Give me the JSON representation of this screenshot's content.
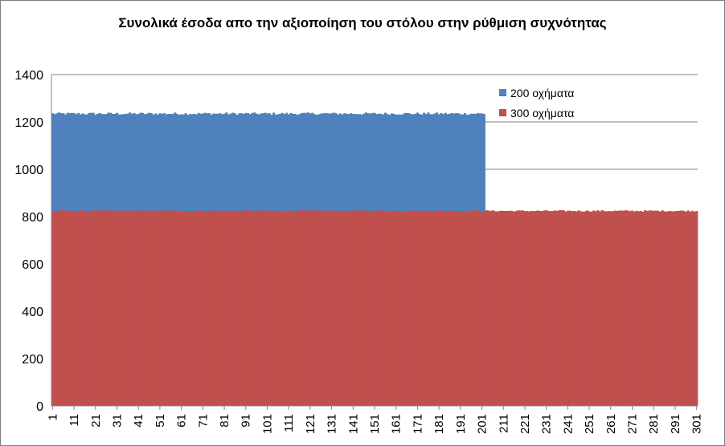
{
  "chart_data": {
    "type": "bar",
    "title": "Συνολικά έσοδα απο την αξιοποίηση του στόλου στην ρύθμιση συχνότητας",
    "xlabel": "",
    "ylabel": "",
    "ylim": [
      0,
      1400
    ],
    "yticks": [
      "0",
      "200",
      "400",
      "600",
      "800",
      "1000",
      "1200",
      "1400"
    ],
    "x_start": 1,
    "x_end": 301,
    "x_tick_step": 10,
    "xticks": [
      "1",
      "11",
      "21",
      "31",
      "41",
      "51",
      "61",
      "71",
      "81",
      "91",
      "101",
      "111",
      "121",
      "131",
      "141",
      "151",
      "161",
      "171",
      "181",
      "191",
      "201",
      "211",
      "221",
      "231",
      "241",
      "251",
      "261",
      "271",
      "281",
      "291",
      "301"
    ],
    "series": [
      {
        "name": "200 οχήματα",
        "color": "#4f81bd",
        "x_range": [
          1,
          202
        ],
        "level": 1235,
        "noise": 5
      },
      {
        "name": "300 οχήματα",
        "color": "#c0504d",
        "x_range": [
          1,
          301
        ],
        "level": 824,
        "noise": 3
      }
    ],
    "grid": true,
    "legend": "top-right",
    "gridline_color": "#868686",
    "axis_color": "#868686"
  }
}
